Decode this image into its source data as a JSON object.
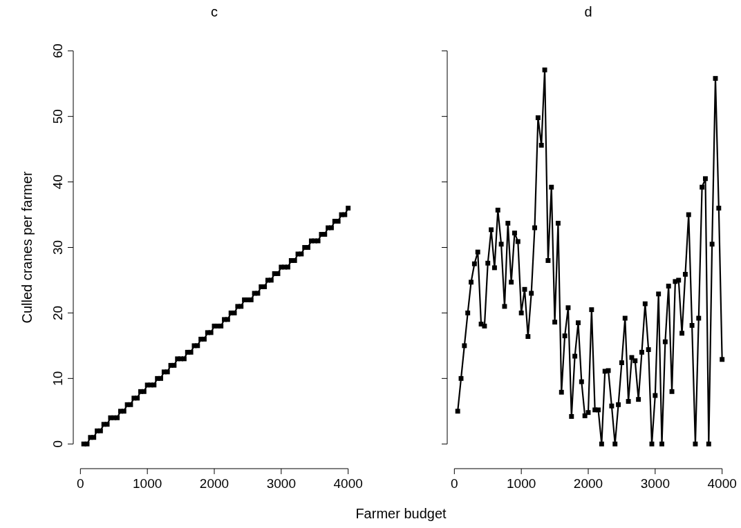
{
  "chart_data": [
    {
      "type": "line",
      "title": "c",
      "xlabel": "Farmer budget",
      "ylabel": "Culled cranes per farmer",
      "marker": "square",
      "line_style": "solid",
      "x": [
        50,
        100,
        150,
        200,
        250,
        300,
        350,
        400,
        450,
        500,
        550,
        600,
        650,
        700,
        750,
        800,
        850,
        900,
        950,
        1000,
        1050,
        1100,
        1150,
        1200,
        1250,
        1300,
        1350,
        1400,
        1450,
        1500,
        1550,
        1600,
        1650,
        1700,
        1750,
        1800,
        1850,
        1900,
        1950,
        2000,
        2050,
        2100,
        2150,
        2200,
        2250,
        2300,
        2350,
        2400,
        2450,
        2500,
        2550,
        2600,
        2650,
        2700,
        2750,
        2800,
        2850,
        2900,
        2950,
        3000,
        3050,
        3100,
        3150,
        3200,
        3250,
        3300,
        3350,
        3400,
        3450,
        3500,
        3550,
        3600,
        3650,
        3700,
        3750,
        3800,
        3850,
        3900,
        3950,
        4000
      ],
      "series": [
        {
          "color": "#000000",
          "values": [
            0,
            0,
            1,
            1,
            2,
            2,
            3,
            3,
            4,
            4,
            4,
            5,
            5,
            6,
            6,
            7,
            7,
            8,
            8,
            9,
            9,
            9,
            10,
            10,
            11,
            11,
            12,
            12,
            13,
            13,
            13,
            14,
            14,
            15,
            15,
            16,
            16,
            17,
            17,
            18,
            18,
            18,
            19,
            19,
            20,
            20,
            21,
            21,
            22,
            22,
            22,
            23,
            23,
            24,
            24,
            25,
            25,
            26,
            26,
            27,
            27,
            27,
            28,
            28,
            29,
            29,
            30,
            30,
            31,
            31,
            31,
            32,
            32,
            33,
            33,
            34,
            34,
            35,
            35,
            36
          ]
        }
      ],
      "xlim": [
        0,
        4000
      ],
      "xticks": [
        0,
        1000,
        2000,
        3000,
        4000
      ],
      "ylim": [
        0,
        60
      ],
      "yticks": [
        0,
        10,
        20,
        30,
        40,
        50,
        60
      ]
    },
    {
      "type": "line",
      "title": "d",
      "marker": "square",
      "line_style": "solid",
      "tick_labels": "x",
      "x": [
        50,
        100,
        150,
        200,
        250,
        300,
        350,
        400,
        450,
        500,
        550,
        600,
        650,
        700,
        750,
        800,
        850,
        900,
        950,
        1000,
        1050,
        1100,
        1150,
        1200,
        1250,
        1300,
        1350,
        1400,
        1450,
        1500,
        1550,
        1600,
        1650,
        1700,
        1750,
        1800,
        1850,
        1900,
        1950,
        2000,
        2050,
        2100,
        2150,
        2200,
        2250,
        2300,
        2350,
        2400,
        2450,
        2500,
        2550,
        2600,
        2650,
        2700,
        2750,
        2800,
        2850,
        2900,
        2950,
        3000,
        3050,
        3100,
        3150,
        3200,
        3250,
        3300,
        3350,
        3400,
        3450,
        3500,
        3550,
        3600,
        3650,
        3700,
        3750,
        3800,
        3850,
        3900,
        3950,
        4000
      ],
      "series": [
        {
          "color": "#000000",
          "values": [
            5,
            10,
            15,
            20,
            24.7,
            27.5,
            29.3,
            18.3,
            18,
            27.6,
            32.7,
            26.9,
            35.7,
            30.5,
            21,
            33.7,
            24.7,
            32.2,
            30.9,
            20,
            23.6,
            16.4,
            23,
            33,
            49.8,
            45.6,
            57.1,
            28,
            39.2,
            18.6,
            33.7,
            7.9,
            16.5,
            20.8,
            4.2,
            13.4,
            18.5,
            9.5,
            4.3,
            4.8,
            20.5,
            5.2,
            5.2,
            0,
            11.1,
            11.2,
            5.8,
            0,
            6,
            12.4,
            19.2,
            6.5,
            13.2,
            12.7,
            6.8,
            14,
            21.4,
            14.4,
            0,
            7.4,
            22.9,
            0,
            15.6,
            24.1,
            8,
            24.8,
            25,
            16.9,
            25.9,
            35,
            18.1,
            0,
            19.2,
            39.2,
            40.5,
            0,
            30.5,
            55.8,
            36,
            12.9
          ]
        }
      ],
      "xlim": [
        0,
        4000
      ],
      "xticks": [
        0,
        1000,
        2000,
        3000,
        4000
      ],
      "ylim": [
        0,
        60
      ],
      "yticks": [
        0,
        10,
        20,
        30,
        40,
        50,
        60
      ]
    }
  ]
}
